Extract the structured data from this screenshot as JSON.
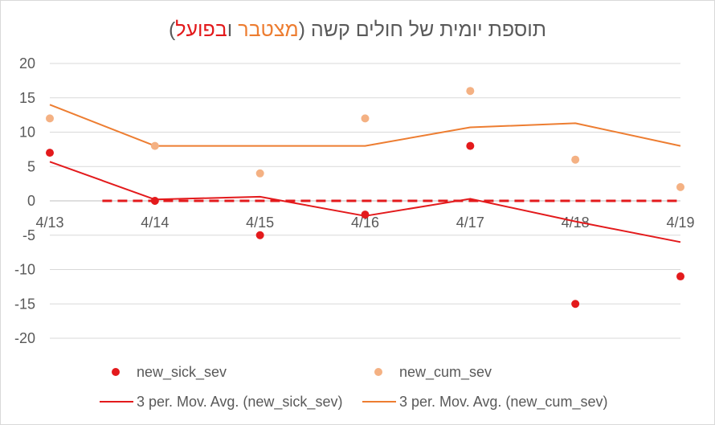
{
  "chart_data": {
    "type": "line",
    "title": {
      "prefix": "תוספת יומית של חולים קשה (",
      "cum_word": "מצטבר",
      "middle": " ו",
      "sick_word": "בפועל",
      "suffix": ")"
    },
    "categories": [
      "4/13",
      "4/14",
      "4/15",
      "4/16",
      "4/17",
      "4/18",
      "4/19"
    ],
    "ylim": [
      -20,
      20
    ],
    "yticks": [
      "20",
      "15",
      "10",
      "5",
      "0",
      "-5",
      "-10",
      "-15",
      "-20"
    ],
    "grid": true,
    "legend_position": "bottom",
    "series": [
      {
        "name": "new_sick_sev",
        "kind": "markers",
        "color": "#e31a1c",
        "values": [
          7,
          0,
          -5,
          -2,
          8,
          -15,
          -11
        ]
      },
      {
        "name": "new_cum_sev",
        "kind": "markers",
        "color": "#f4b183",
        "values": [
          12,
          8,
          4,
          12,
          16,
          6,
          2
        ]
      },
      {
        "name": "3 per. Mov. Avg. (new_sick_sev)",
        "kind": "line",
        "color": "#e31a1c",
        "values": [
          5.7,
          0.2,
          0.6,
          -2.2,
          0.3,
          -3,
          -6
        ]
      },
      {
        "name": "3 per. Mov. Avg. (new_cum_sev)",
        "kind": "line",
        "color": "#ed7d31",
        "values": [
          14,
          8,
          8,
          8,
          10.7,
          11.3,
          8
        ]
      }
    ],
    "reference_line": {
      "value": 0,
      "color": "#e31a1c",
      "style": "dashed"
    },
    "colors": {
      "axis": "#bfbfbf",
      "grid": "#d9d9d9",
      "text": "#595959",
      "title": "#595959",
      "title_cum": "#ed7d31",
      "title_sick": "#e31a1c"
    }
  }
}
